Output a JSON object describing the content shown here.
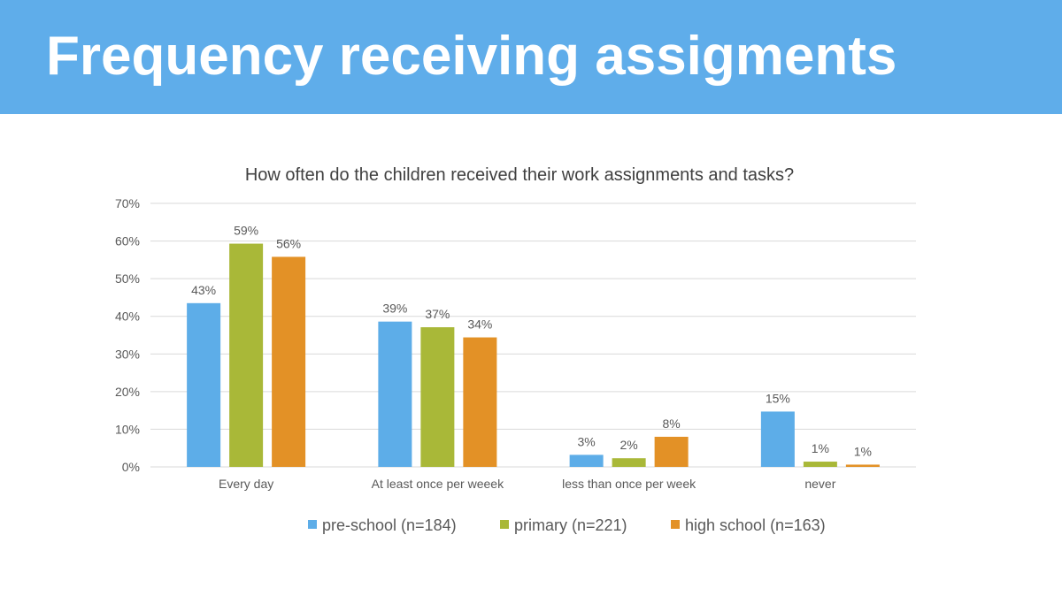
{
  "slide": {
    "title": "Frequency receiving assigments"
  },
  "colors": {
    "banner": "#5fadea",
    "grid": "#d9d9d9",
    "text": "#595959",
    "title_text": "#404040"
  },
  "chart_data": {
    "type": "bar",
    "title": "How often do the children received their work assignments and tasks?",
    "xlabel": "",
    "ylabel": "",
    "categories": [
      "Every  day",
      "At least once per weeek",
      "less than once per week",
      "never"
    ],
    "series": [
      {
        "name": "pre-school (n=184)",
        "color": "#5dade8",
        "values": [
          43.5,
          38.6,
          3.2,
          14.7
        ],
        "labels": [
          "43%",
          "39%",
          "3%",
          "15%"
        ]
      },
      {
        "name": "primary (n=221)",
        "color": "#a9b838",
        "values": [
          59.3,
          37.1,
          2.3,
          1.4
        ],
        "labels": [
          "59%",
          "37%",
          "2%",
          "1%"
        ]
      },
      {
        "name": "high school (n=163)",
        "color": "#e39126",
        "values": [
          55.8,
          34.4,
          8.0,
          0.6
        ],
        "labels": [
          "56%",
          "34%",
          "8%",
          "1%"
        ]
      }
    ],
    "ylim": [
      0,
      70
    ],
    "yticks": [
      0,
      10,
      20,
      30,
      40,
      50,
      60,
      70
    ],
    "ytick_labels": [
      "0%",
      "10%",
      "20%",
      "30%",
      "40%",
      "50%",
      "60%",
      "70%"
    ],
    "grid": true,
    "legend": "bottom"
  }
}
